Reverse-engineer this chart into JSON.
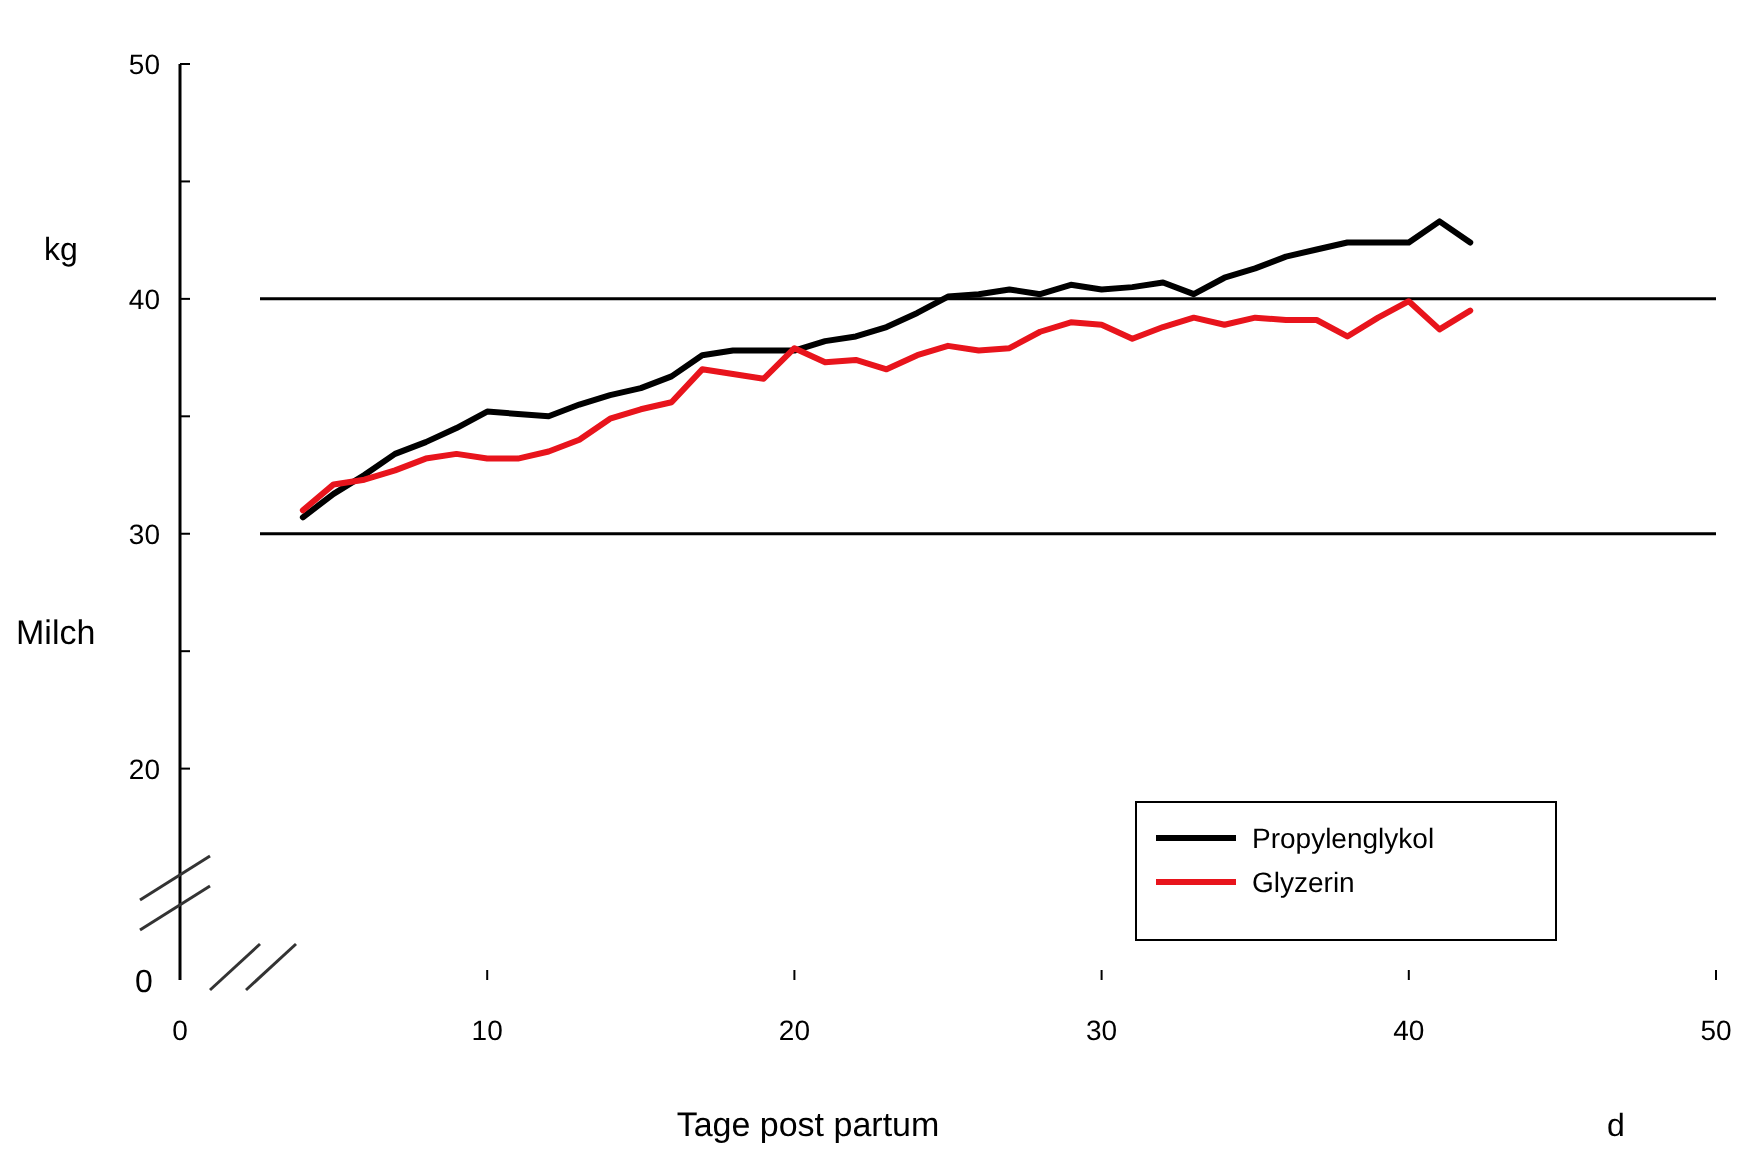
{
  "chart_data": {
    "type": "line",
    "xlabel": "Tage post partum",
    "ylabel": "Milch",
    "annotations": [
      "kg",
      "d",
      "0"
    ],
    "x": [
      4,
      5,
      6,
      7,
      8,
      9,
      10,
      11,
      12,
      13,
      14,
      15,
      16,
      17,
      18,
      19,
      20,
      21,
      22,
      23,
      24,
      25,
      26,
      27,
      28,
      29,
      30,
      31,
      32,
      33,
      34,
      35,
      36,
      37,
      38,
      39,
      40,
      41,
      42
    ],
    "series": [
      {
        "name": "Propylenglykol",
        "color": "#000000",
        "values": [
          30.7,
          31.7,
          32.5,
          33.4,
          33.9,
          34.5,
          35.2,
          35.1,
          35.0,
          35.5,
          35.9,
          36.2,
          36.7,
          37.6,
          37.8,
          37.8,
          37.8,
          38.2,
          38.4,
          38.8,
          39.4,
          40.1,
          40.2,
          40.4,
          40.2,
          40.6,
          40.4,
          40.5,
          40.7,
          40.2,
          40.9,
          41.3,
          41.8,
          42.1,
          42.4,
          42.4,
          42.4,
          43.3,
          42.4
        ]
      },
      {
        "name": "Glyzerin",
        "color": "#e8141c",
        "values": [
          31.0,
          32.1,
          32.3,
          32.7,
          33.2,
          33.4,
          33.2,
          33.2,
          33.5,
          34.0,
          34.9,
          35.3,
          35.6,
          37.0,
          36.8,
          36.6,
          37.9,
          37.3,
          37.4,
          37.0,
          37.6,
          38.0,
          37.8,
          37.9,
          38.6,
          39.0,
          38.9,
          38.3,
          38.8,
          39.2,
          38.9,
          39.2,
          39.1,
          39.1,
          38.4,
          39.2,
          39.9,
          38.7,
          39.5
        ]
      }
    ],
    "xlim": [
      0,
      50
    ],
    "xticks": [
      0,
      10,
      20,
      30,
      40,
      50
    ],
    "ylim": [
      11,
      50
    ],
    "yticks": [
      20,
      {
        "value": 25,
        "label": null
      },
      30,
      {
        "value": 35,
        "label": null
      },
      40,
      {
        "value": 45,
        "label": null
      },
      50
    ],
    "ref_lines": [
      {
        "axis": "y",
        "value": 30,
        "color": "#000000"
      },
      {
        "axis": "y",
        "value": 40,
        "color": "#000000"
      }
    ],
    "legend": "bottom right",
    "marker": "none",
    "line_style": "solid"
  }
}
